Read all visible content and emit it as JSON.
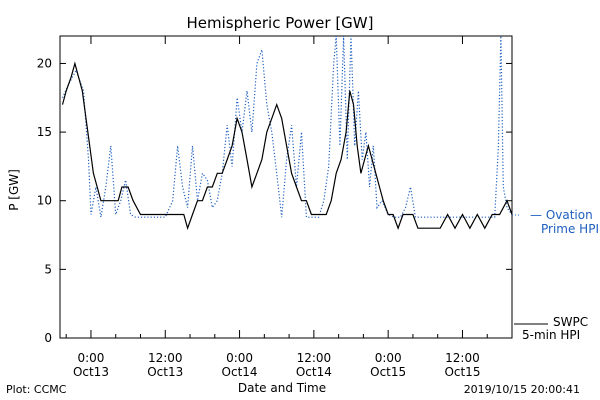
{
  "chart_data": {
    "type": "line",
    "title": "Hemispheric Power [GW]",
    "xlabel": "Date and Time",
    "ylabel": "P [GW]",
    "ylim": [
      0,
      22
    ],
    "xlim": [
      -2.5,
      34
    ],
    "yticks": [
      0,
      5,
      10,
      15,
      20
    ],
    "xticks": [
      {
        "x": 0,
        "label1": "0:00",
        "label2": "Oct13"
      },
      {
        "x": 6,
        "label1": "12:00",
        "label2": "Oct13"
      },
      {
        "x": 12,
        "label1": "0:00",
        "label2": "Oct14"
      },
      {
        "x": 18,
        "label1": "12:00",
        "label2": "Oct14"
      },
      {
        "x": 24,
        "label1": "0:00",
        "label2": "Oct15"
      },
      {
        "x": 30,
        "label1": "12:00",
        "label2": "Oct15"
      }
    ],
    "x_unit_note": "hours from 2019-10-13 00:00 UT (half-day per tick interval)",
    "legend_placement": "right",
    "series": [
      {
        "name": "Ovation Prime HPI",
        "color": "#1f5fbf",
        "style": "dotted",
        "points": [
          [
            -2.3,
            17.5
          ],
          [
            -1.8,
            18.5
          ],
          [
            -1.2,
            19.5
          ],
          [
            -0.6,
            18
          ],
          [
            -0.2,
            13
          ],
          [
            0,
            9
          ],
          [
            0.4,
            11
          ],
          [
            0.8,
            8.8
          ],
          [
            1.2,
            11
          ],
          [
            1.6,
            14
          ],
          [
            2,
            9
          ],
          [
            2.4,
            10
          ],
          [
            2.8,
            11.5
          ],
          [
            3.2,
            9
          ],
          [
            3.6,
            8.8
          ],
          [
            4.4,
            8.8
          ],
          [
            5.2,
            8.8
          ],
          [
            6,
            8.8
          ],
          [
            6.6,
            10
          ],
          [
            7,
            14
          ],
          [
            7.4,
            11
          ],
          [
            7.8,
            9.5
          ],
          [
            8.2,
            14
          ],
          [
            8.6,
            10
          ],
          [
            9,
            12
          ],
          [
            9.4,
            11.5
          ],
          [
            9.8,
            9.5
          ],
          [
            10.2,
            10
          ],
          [
            10.6,
            12
          ],
          [
            11,
            15.5
          ],
          [
            11.4,
            12.5
          ],
          [
            11.8,
            17.5
          ],
          [
            12.2,
            15
          ],
          [
            12.6,
            18
          ],
          [
            13,
            15
          ],
          [
            13.4,
            20
          ],
          [
            13.8,
            21
          ],
          [
            14.2,
            17
          ],
          [
            14.6,
            15
          ],
          [
            15,
            12
          ],
          [
            15.4,
            8.8
          ],
          [
            15.8,
            13
          ],
          [
            16.2,
            15.5
          ],
          [
            16.6,
            11
          ],
          [
            17,
            15
          ],
          [
            17.4,
            8.8
          ],
          [
            17.8,
            8.8
          ],
          [
            18.4,
            8.8
          ],
          [
            18.8,
            10
          ],
          [
            19.2,
            12.5
          ],
          [
            19.6,
            20
          ],
          [
            19.8,
            22
          ],
          [
            20.1,
            14
          ],
          [
            20.4,
            22
          ],
          [
            20.7,
            13
          ],
          [
            21,
            22
          ],
          [
            21.3,
            14
          ],
          [
            21.6,
            18
          ],
          [
            21.9,
            13
          ],
          [
            22.2,
            15
          ],
          [
            22.5,
            11
          ],
          [
            22.8,
            14
          ],
          [
            23.1,
            9.5
          ],
          [
            23.5,
            10
          ],
          [
            24,
            9
          ],
          [
            24.5,
            8.8
          ],
          [
            25,
            8.8
          ],
          [
            25.4,
            9.5
          ],
          [
            25.8,
            11
          ],
          [
            26.2,
            8.8
          ],
          [
            27,
            8.8
          ],
          [
            28,
            8.8
          ],
          [
            29,
            8.8
          ],
          [
            30,
            8.8
          ],
          [
            31,
            8.8
          ],
          [
            32,
            8.8
          ],
          [
            32.6,
            8.8
          ],
          [
            32.9,
            14
          ],
          [
            33.1,
            22
          ],
          [
            33.3,
            11
          ],
          [
            33.6,
            9.5
          ],
          [
            34,
            9
          ]
        ]
      },
      {
        "name": "SWPC 5-min HPI",
        "color": "#000000",
        "style": "solid",
        "points": [
          [
            -2.3,
            17
          ],
          [
            -2,
            18
          ],
          [
            -1.6,
            19
          ],
          [
            -1.3,
            20
          ],
          [
            -1,
            19
          ],
          [
            -0.7,
            18
          ],
          [
            -0.4,
            16
          ],
          [
            -0.1,
            14
          ],
          [
            0.2,
            12
          ],
          [
            0.5,
            11
          ],
          [
            0.8,
            10
          ],
          [
            1.3,
            10
          ],
          [
            1.8,
            10
          ],
          [
            2.2,
            10
          ],
          [
            2.5,
            11
          ],
          [
            3,
            11
          ],
          [
            3.4,
            10
          ],
          [
            4,
            9
          ],
          [
            4.5,
            9
          ],
          [
            5.5,
            9
          ],
          [
            6.5,
            9
          ],
          [
            7.5,
            9
          ],
          [
            7.8,
            8
          ],
          [
            8.2,
            9
          ],
          [
            8.6,
            10
          ],
          [
            9,
            10
          ],
          [
            9.4,
            11
          ],
          [
            9.8,
            11
          ],
          [
            10.2,
            12
          ],
          [
            10.6,
            12
          ],
          [
            11,
            13
          ],
          [
            11.4,
            14
          ],
          [
            11.8,
            16
          ],
          [
            12.2,
            15
          ],
          [
            12.6,
            13
          ],
          [
            13,
            11
          ],
          [
            13.4,
            12
          ],
          [
            13.8,
            13
          ],
          [
            14.2,
            15
          ],
          [
            14.6,
            16
          ],
          [
            15,
            17
          ],
          [
            15.4,
            16
          ],
          [
            15.8,
            14
          ],
          [
            16.2,
            12
          ],
          [
            16.6,
            11
          ],
          [
            17,
            10
          ],
          [
            17.4,
            10
          ],
          [
            17.8,
            9
          ],
          [
            18.2,
            9
          ],
          [
            18.6,
            9
          ],
          [
            19,
            9
          ],
          [
            19.4,
            10
          ],
          [
            19.8,
            12
          ],
          [
            20.2,
            13
          ],
          [
            20.6,
            15
          ],
          [
            20.9,
            18
          ],
          [
            21.2,
            17
          ],
          [
            21.5,
            14
          ],
          [
            21.8,
            12
          ],
          [
            22.1,
            13
          ],
          [
            22.4,
            14
          ],
          [
            22.7,
            13
          ],
          [
            23,
            12
          ],
          [
            23.3,
            11
          ],
          [
            23.6,
            10
          ],
          [
            24,
            9
          ],
          [
            24.4,
            9
          ],
          [
            24.8,
            8
          ],
          [
            25.2,
            9
          ],
          [
            25.6,
            9
          ],
          [
            26,
            9
          ],
          [
            26.4,
            8
          ],
          [
            27,
            8
          ],
          [
            27.6,
            8
          ],
          [
            28.2,
            8
          ],
          [
            28.8,
            9
          ],
          [
            29.4,
            8
          ],
          [
            30,
            9
          ],
          [
            30.6,
            8
          ],
          [
            31.2,
            9
          ],
          [
            31.8,
            8
          ],
          [
            32.4,
            9
          ],
          [
            33,
            9
          ],
          [
            33.6,
            10
          ],
          [
            34,
            9
          ]
        ]
      }
    ],
    "footer_left": "Plot: CCMC",
    "timestamp": "2019/10/15 20:00:41",
    "legend_ovation_line1": "— Ovation",
    "legend_ovation_line2": "Prime HPI",
    "legend_swpc_line1": "SWPC",
    "legend_swpc_line2": "5-min HPI"
  }
}
